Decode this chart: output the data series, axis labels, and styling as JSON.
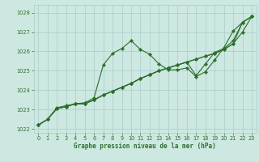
{
  "background_color": "#cce8e0",
  "grid_color": "#aacccc",
  "line_color": "#2d6e2d",
  "xlim": [
    -0.5,
    23.5
  ],
  "ylim": [
    1021.8,
    1028.4
  ],
  "yticks": [
    1022,
    1023,
    1024,
    1025,
    1026,
    1027,
    1028
  ],
  "xticks": [
    0,
    1,
    2,
    3,
    4,
    5,
    6,
    7,
    8,
    9,
    10,
    11,
    12,
    13,
    14,
    15,
    16,
    17,
    18,
    19,
    20,
    21,
    22,
    23
  ],
  "xlabel": "Graphe pression niveau de la mer (hPa)",
  "s1": [
    1022.2,
    1022.5,
    1023.1,
    1023.2,
    1023.3,
    1023.35,
    1023.6,
    1025.3,
    1025.9,
    1026.15,
    1026.55,
    1026.1,
    1025.85,
    1025.35,
    1025.05,
    1025.05,
    1025.15,
    1024.7,
    1024.95,
    1025.55,
    1026.2,
    1027.05,
    1027.5,
    1027.8
  ],
  "s2": [
    1022.2,
    1022.5,
    1023.05,
    1023.15,
    1023.3,
    1023.3,
    1023.5,
    1023.75,
    1023.95,
    1024.15,
    1024.35,
    1024.6,
    1024.8,
    1025.0,
    1025.15,
    1025.3,
    1025.45,
    1025.6,
    1025.75,
    1025.9,
    1026.1,
    1026.4,
    1027.0,
    1027.8
  ],
  "s3": [
    1022.2,
    1022.5,
    1023.05,
    1023.15,
    1023.3,
    1023.3,
    1023.5,
    1023.75,
    1023.95,
    1024.15,
    1024.35,
    1024.6,
    1024.8,
    1025.0,
    1025.15,
    1025.3,
    1025.45,
    1025.6,
    1025.75,
    1025.9,
    1026.1,
    1026.4,
    1027.5,
    1027.8
  ],
  "s4": [
    1022.2,
    1022.5,
    1023.05,
    1023.15,
    1023.3,
    1023.3,
    1023.5,
    1023.75,
    1023.95,
    1024.15,
    1024.35,
    1024.6,
    1024.8,
    1025.0,
    1025.15,
    1025.3,
    1025.45,
    1024.75,
    1025.35,
    1025.95,
    1026.15,
    1026.55,
    1027.5,
    1027.8
  ]
}
